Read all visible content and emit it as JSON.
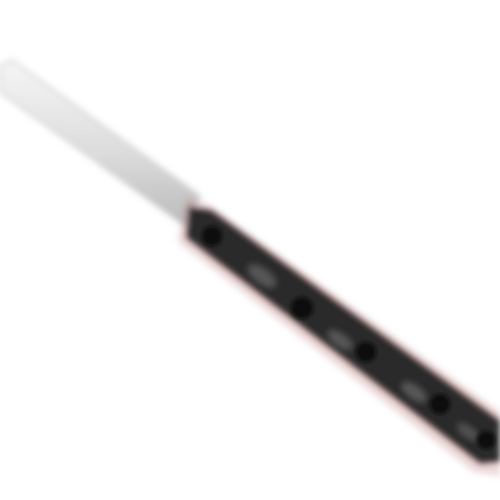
{
  "image": {
    "subject": "knife-icon",
    "background_color": "#ffffff",
    "blade_color": "#d8d8d8",
    "blade_highlight": "#f4f4f4",
    "handle_color": "#2a2a2a",
    "handle_edge_tint": "#c98f8f",
    "rivet_color": "#111111"
  }
}
